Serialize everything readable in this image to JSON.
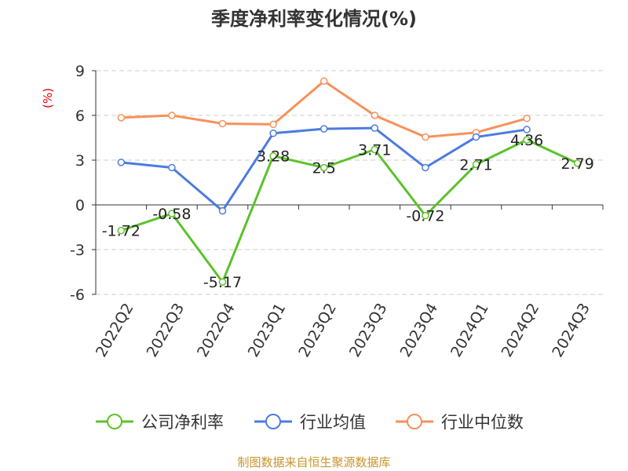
{
  "chart_data": {
    "type": "line",
    "title": "季度净利率变化情况(%)",
    "unit_label": "(%)",
    "categories": [
      "2022Q2",
      "2022Q3",
      "2022Q4",
      "2023Q1",
      "2023Q2",
      "2023Q3",
      "2023Q4",
      "2024Q1",
      "2024Q2",
      "2024Q3"
    ],
    "y_ticks": [
      "9",
      "6",
      "3",
      "0",
      "-3",
      "-6"
    ],
    "ylim": [
      -6,
      9
    ],
    "grid": true,
    "legend_position": "bottom",
    "series": [
      {
        "name": "公司净利率",
        "color": "#5cc22b",
        "values": [
          -1.72,
          -0.58,
          -5.17,
          3.28,
          2.5,
          3.71,
          -0.72,
          2.71,
          4.36,
          2.79
        ],
        "labels": [
          "-1.72",
          "-0.58",
          "-5.17",
          "3.28",
          "2.5",
          "3.71",
          "-0.72",
          "2.71",
          "4.36",
          "2.79"
        ]
      },
      {
        "name": "行业均值",
        "color": "#4c7be0",
        "values": [
          2.85,
          2.5,
          -0.4,
          4.8,
          5.1,
          5.15,
          2.5,
          4.55,
          5.05,
          null
        ]
      },
      {
        "name": "行业中位数",
        "color": "#f7915a",
        "values": [
          5.85,
          6.0,
          5.45,
          5.4,
          8.3,
          6.0,
          4.55,
          4.85,
          5.8,
          null
        ]
      }
    ],
    "source": "制图数据来自恒生聚源数据库"
  }
}
